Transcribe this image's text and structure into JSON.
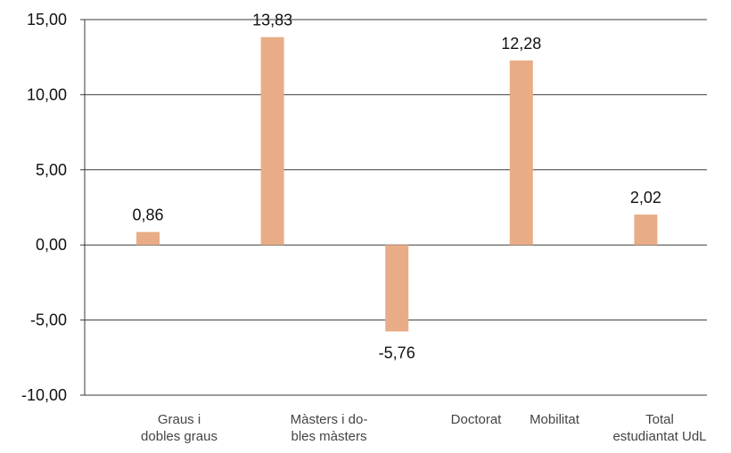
{
  "chart_data": {
    "type": "bar",
    "categories": [
      [
        "Graus i",
        "dobles graus"
      ],
      [
        "Màsters i do-",
        "bles màsters"
      ],
      [
        "Doctorat"
      ],
      [
        "Mobilitat"
      ],
      [
        "Total",
        "estudiantat UdL"
      ]
    ],
    "values": [
      0.86,
      13.83,
      -5.76,
      12.28,
      2.02
    ],
    "data_labels": [
      "0,86",
      "13,83",
      "-5,76",
      "12,28",
      "2,02"
    ],
    "y_ticks": [
      15,
      10,
      5,
      0,
      -5,
      -10
    ],
    "y_tick_labels": [
      "15,00",
      "10,00",
      "5,00",
      "0,00",
      "-5,00",
      "-10,00"
    ],
    "ylim": [
      -10,
      15
    ],
    "grid": true,
    "legend": "none",
    "bar_color": "#e8ad86",
    "title": "",
    "xlabel": "",
    "ylabel": ""
  }
}
